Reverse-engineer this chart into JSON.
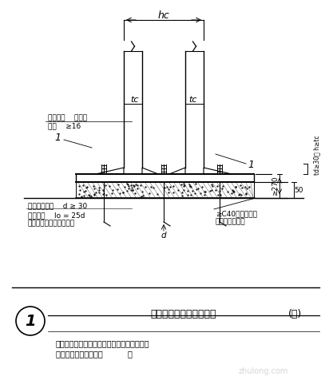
{
  "bg_color": "#ffffff",
  "line_color": "#000000",
  "fig_width": 4.12,
  "fig_height": 4.91,
  "title_text": "筱形截面柱刚性柱脚构造",
  "title_number": "1",
  "title_suffix": "(一)",
  "subtitle_line1": "（用于柱底端在弯矩和轴力作用下锡栓出现较",
  "subtitle_line2": "小拉力和不出现拉力时          ）",
  "label_hc": "hc",
  "label_tc": "tc",
  "label_anchor_dia": "锡栓公称直径    d ≥ 30",
  "label_anchor_len": "锡固长度    lo = 25d",
  "label_anchor_note": "《下端应作弯钉或锡板》",
  "label_stiff_line1": "锡栓支系    加劲肘",
  "label_stiff_line2": "板厚    ≥16",
  "label_d": "d",
  "label_270": "≥270",
  "label_50": "50",
  "label_td": "td≥30， h≥tc",
  "label_c40": "≥C40无收缩碗石\n混凝土或细沙浆",
  "watermark": "zhulong.com"
}
